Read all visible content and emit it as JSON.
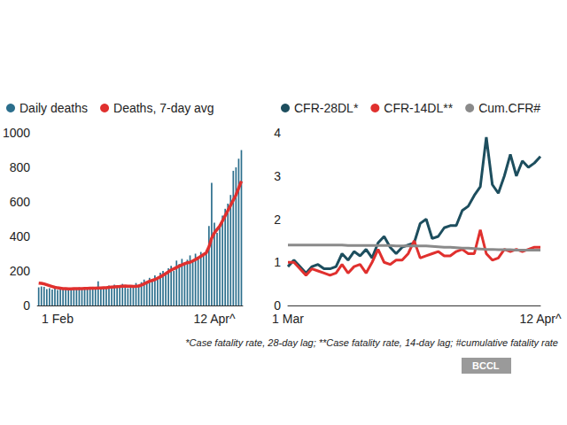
{
  "chart_data": [
    {
      "type": "bar",
      "categories": [
        null,
        null,
        null,
        null,
        null,
        null,
        null,
        "1 Feb",
        null,
        null,
        null,
        null,
        null,
        null,
        null,
        null,
        null,
        null,
        null,
        null,
        null,
        null,
        null,
        null,
        null,
        null,
        null,
        null,
        null,
        null,
        null,
        null,
        null,
        null,
        null,
        null,
        null,
        null,
        null,
        null,
        null,
        null,
        null,
        null,
        null,
        null,
        null,
        null,
        null,
        null,
        null,
        null,
        null,
        null,
        null,
        null,
        null,
        null,
        null,
        null,
        null,
        null,
        null,
        null,
        null,
        "12 Apr^",
        null,
        null,
        null,
        null,
        null,
        null,
        null,
        null,
        null,
        null
      ],
      "series": [
        {
          "name": "Daily deaths",
          "type": "bar",
          "color": "#2b6e8c",
          "values": [
            105,
            110,
            108,
            95,
            100,
            92,
            98,
            90,
            100,
            95,
            102,
            98,
            92,
            100,
            96,
            105,
            100,
            93,
            102,
            98,
            108,
            95,
            140,
            105,
            100,
            108,
            115,
            110,
            120,
            105,
            112,
            125,
            110,
            100,
            108,
            115,
            130,
            120,
            135,
            150,
            140,
            160,
            150,
            175,
            165,
            190,
            200,
            185,
            215,
            230,
            200,
            260,
            240,
            270,
            250,
            265,
            290,
            260,
            300,
            280,
            310,
            300,
            320,
            460,
            710,
            480,
            420,
            470,
            520,
            560,
            590,
            640,
            780,
            800,
            850,
            900
          ]
        },
        {
          "name": "Deaths, 7-day avg",
          "type": "line",
          "color": "#e0302e",
          "values": [
            130,
            128,
            125,
            120,
            115,
            110,
            105,
            102,
            100,
            98,
            97,
            96,
            96,
            97,
            97,
            98,
            98,
            99,
            99,
            100,
            100,
            100,
            101,
            101,
            102,
            103,
            105,
            107,
            108,
            109,
            110,
            112,
            113,
            112,
            111,
            110,
            111,
            113,
            118,
            125,
            133,
            140,
            145,
            150,
            158,
            166,
            175,
            185,
            195,
            205,
            212,
            220,
            228,
            235,
            242,
            248,
            250,
            258,
            266,
            275,
            285,
            295,
            305,
            340,
            390,
            420,
            440,
            460,
            490,
            520,
            550,
            580,
            610,
            640,
            680,
            720
          ]
        }
      ],
      "ylim": [
        0,
        1000
      ],
      "yticks": [
        0,
        200,
        400,
        600,
        800,
        1000
      ],
      "grid": false,
      "legend": "top left"
    },
    {
      "type": "line",
      "categories": [
        "1 Mar",
        null,
        null,
        null,
        null,
        null,
        null,
        null,
        null,
        null,
        null,
        null,
        null,
        null,
        null,
        null,
        null,
        null,
        null,
        null,
        null,
        null,
        null,
        null,
        null,
        null,
        null,
        null,
        null,
        null,
        null,
        null,
        null,
        null,
        null,
        null,
        null,
        null,
        null,
        null,
        null,
        null,
        "12 Apr^"
      ],
      "series": [
        {
          "name": "CFR-28DL*",
          "color": "#1d4e5e",
          "values": [
            0.9,
            1.05,
            0.9,
            0.75,
            0.9,
            0.95,
            0.85,
            0.85,
            0.9,
            1.2,
            1.05,
            1.25,
            1.15,
            1.3,
            1.1,
            1.45,
            1.6,
            1.35,
            1.2,
            1.35,
            1.4,
            1.45,
            1.9,
            2.0,
            1.55,
            1.6,
            1.8,
            1.85,
            1.85,
            2.2,
            2.3,
            2.55,
            2.75,
            3.9,
            2.8,
            2.6,
            3.0,
            3.5,
            3.0,
            3.35,
            3.2,
            3.3,
            3.45
          ]
        },
        {
          "name": "CFR-14DL**",
          "color": "#e0302e",
          "values": [
            1.0,
            1.0,
            0.85,
            0.7,
            0.85,
            0.8,
            0.75,
            0.7,
            0.75,
            0.95,
            0.75,
            0.9,
            0.95,
            0.75,
            1.0,
            1.3,
            1.0,
            0.95,
            1.05,
            1.05,
            1.2,
            1.5,
            1.1,
            1.15,
            1.2,
            1.25,
            1.15,
            1.15,
            1.25,
            1.3,
            1.2,
            1.2,
            1.75,
            1.2,
            1.05,
            1.1,
            1.3,
            1.25,
            1.3,
            1.25,
            1.3,
            1.35,
            1.35
          ]
        },
        {
          "name": "Cum.CFR#",
          "color": "#8a8a8a",
          "values": [
            1.4,
            1.4,
            1.4,
            1.4,
            1.4,
            1.4,
            1.4,
            1.4,
            1.4,
            1.4,
            1.39,
            1.39,
            1.39,
            1.39,
            1.39,
            1.39,
            1.39,
            1.39,
            1.38,
            1.38,
            1.38,
            1.38,
            1.38,
            1.38,
            1.37,
            1.36,
            1.35,
            1.35,
            1.34,
            1.33,
            1.33,
            1.32,
            1.31,
            1.3,
            1.3,
            1.29,
            1.29,
            1.29,
            1.28,
            1.28,
            1.28,
            1.28,
            1.28
          ]
        }
      ],
      "ylim": [
        0,
        4
      ],
      "yticks": [
        0,
        1,
        2,
        3,
        4
      ],
      "grid": false,
      "legend": "top left",
      "annotations": [
        "*Case fatality rate, 28-day lag; **Case fatality rate, 14-day lag; #cumulative fatality rate",
        "BCCL"
      ]
    }
  ]
}
